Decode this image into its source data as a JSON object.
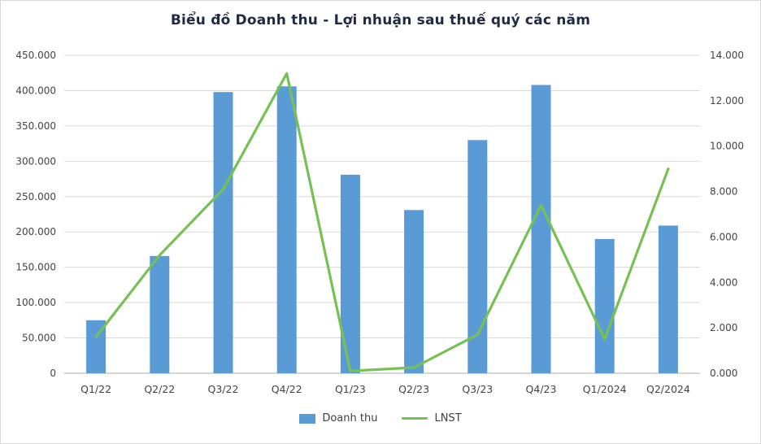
{
  "chart_data": {
    "type": "combo",
    "title": "Biểu đồ Doanh thu - Lợi nhuận sau thuế quý các năm",
    "categories": [
      "Q1/22",
      "Q2/22",
      "Q3/22",
      "Q4/22",
      "Q1/23",
      "Q2/23",
      "Q3/23",
      "Q4/23",
      "Q1/2024",
      "Q2/2024"
    ],
    "series": [
      {
        "name": "Doanh thu",
        "type": "bar",
        "axis": "left",
        "color": "#5B9BD5",
        "values": [
          75000,
          166000,
          398000,
          406000,
          281000,
          231000,
          330000,
          408000,
          190000,
          209000
        ]
      },
      {
        "name": "LNST",
        "type": "line",
        "axis": "right",
        "color": "#77C154",
        "values": [
          1.6,
          5.2,
          8.1,
          13.2,
          0.1,
          0.25,
          1.7,
          7.4,
          1.5,
          9.0
        ]
      }
    ],
    "left_axis": {
      "min": 0,
      "max": 450000,
      "step": 50000,
      "labels": [
        "450.000",
        "400.000",
        "350.000",
        "300.000",
        "250.000",
        "200.000",
        "150.000",
        "100.000",
        "50.000",
        "0"
      ]
    },
    "right_axis": {
      "min": 0,
      "max": 14,
      "step": 2,
      "labels": [
        "14.000",
        "12.000",
        "10.000",
        "8.000",
        "6.000",
        "4.000",
        "2.000",
        "0.000"
      ]
    },
    "grid": "horizontal",
    "legend_position": "bottom",
    "colors": {
      "gridline": "#d9d9d9",
      "axis_line": "#aeaeae",
      "axis_text": "#444444",
      "title_text": "#1f2b45"
    }
  }
}
